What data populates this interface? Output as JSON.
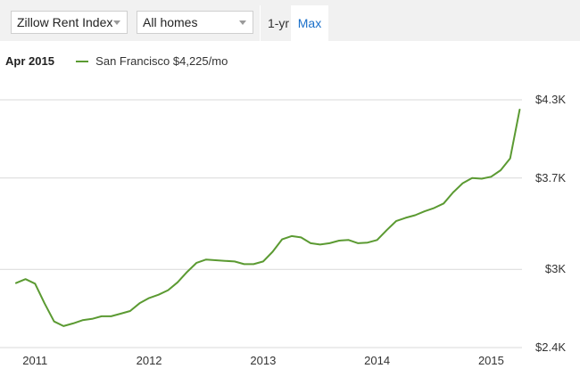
{
  "toolbar": {
    "metric_select": {
      "value": "Zillow Rent Index",
      "icon": "chevron-down-icon"
    },
    "home_type_select": {
      "value": "All homes",
      "icon": "chevron-down-icon"
    },
    "ranges": [
      {
        "label": "1-yr",
        "active": false
      },
      {
        "label": "Max",
        "active": true
      }
    ]
  },
  "legend": {
    "date": "Apr 2015",
    "series_label": "San Francisco $4,225/mo"
  },
  "colors": {
    "series": "#5b9a32",
    "gridline": "#d9d9d9",
    "active_range": "#1a6fc9",
    "toolbar_bg": "#f1f1f1"
  },
  "chart_data": {
    "type": "line",
    "title": "",
    "xlabel": "",
    "ylabel": "",
    "grid": "horizontal",
    "y_axis_position": "right",
    "ylim": [
      2400,
      4300
    ],
    "y_ticks": [
      {
        "value": 2400,
        "label": "$2.4K"
      },
      {
        "value": 3000,
        "label": "$3K"
      },
      {
        "value": 3700,
        "label": "$3.7K"
      },
      {
        "value": 4300,
        "label": "$4.3K"
      }
    ],
    "x_ticks": [
      {
        "value": "2011-01",
        "label": "2011"
      },
      {
        "value": "2012-01",
        "label": "2012"
      },
      {
        "value": "2013-01",
        "label": "2013"
      },
      {
        "value": "2014-01",
        "label": "2014"
      },
      {
        "value": "2015-01",
        "label": "2015"
      }
    ],
    "xlim": [
      "2010-11",
      "2015-05"
    ],
    "series": [
      {
        "name": "San Francisco",
        "x": [
          "2010-11",
          "2010-12",
          "2011-01",
          "2011-02",
          "2011-03",
          "2011-04",
          "2011-05",
          "2011-06",
          "2011-07",
          "2011-08",
          "2011-09",
          "2011-10",
          "2011-11",
          "2011-12",
          "2012-01",
          "2012-02",
          "2012-03",
          "2012-04",
          "2012-05",
          "2012-06",
          "2012-07",
          "2012-08",
          "2012-09",
          "2012-10",
          "2012-11",
          "2012-12",
          "2013-01",
          "2013-02",
          "2013-03",
          "2013-04",
          "2013-05",
          "2013-06",
          "2013-07",
          "2013-08",
          "2013-09",
          "2013-10",
          "2013-11",
          "2013-12",
          "2014-01",
          "2014-02",
          "2014-03",
          "2014-04",
          "2014-05",
          "2014-06",
          "2014-07",
          "2014-08",
          "2014-09",
          "2014-10",
          "2014-11",
          "2014-12",
          "2015-01",
          "2015-02",
          "2015-03",
          "2015-04"
        ],
        "values": [
          2895,
          2925,
          2890,
          2740,
          2600,
          2565,
          2585,
          2610,
          2620,
          2640,
          2640,
          2660,
          2680,
          2740,
          2780,
          2805,
          2840,
          2900,
          2980,
          3050,
          3075,
          3070,
          3065,
          3060,
          3040,
          3040,
          3060,
          3135,
          3230,
          3255,
          3245,
          3200,
          3190,
          3200,
          3220,
          3225,
          3200,
          3205,
          3225,
          3300,
          3370,
          3395,
          3415,
          3445,
          3470,
          3505,
          3590,
          3660,
          3700,
          3695,
          3710,
          3760,
          3850,
          4225
        ]
      }
    ]
  }
}
